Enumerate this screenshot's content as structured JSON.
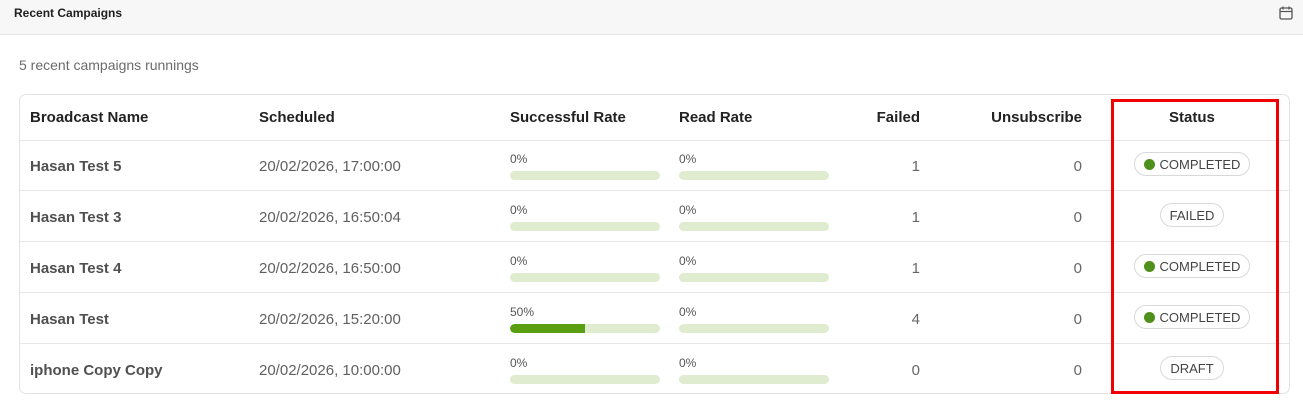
{
  "header": {
    "title": "Recent Campaigns",
    "calendar_icon": "calendar-icon"
  },
  "subtitle": "5 recent campaigns runnings",
  "columns": {
    "name": "Broadcast Name",
    "scheduled": "Scheduled",
    "success": "Successful Rate",
    "read": "Read Rate",
    "failed": "Failed",
    "unsubscribe": "Unsubscribe",
    "status": "Status"
  },
  "rows": [
    {
      "name": "Hasan Test 5",
      "scheduled": "20/02/2026, 17:00:00",
      "success_label": "0%",
      "success_value": 0,
      "read_label": "0%",
      "read_value": 0,
      "failed": "1",
      "unsubscribe": "0",
      "status": "COMPLETED",
      "status_dot": true
    },
    {
      "name": "Hasan Test 3",
      "scheduled": "20/02/2026, 16:50:04",
      "success_label": "0%",
      "success_value": 0,
      "read_label": "0%",
      "read_value": 0,
      "failed": "1",
      "unsubscribe": "0",
      "status": "FAILED",
      "status_dot": false
    },
    {
      "name": "Hasan Test 4",
      "scheduled": "20/02/2026, 16:50:00",
      "success_label": "0%",
      "success_value": 0,
      "read_label": "0%",
      "read_value": 0,
      "failed": "1",
      "unsubscribe": "0",
      "status": "COMPLETED",
      "status_dot": true
    },
    {
      "name": "Hasan Test",
      "scheduled": "20/02/2026, 15:20:00",
      "success_label": "50%",
      "success_value": 50,
      "read_label": "0%",
      "read_value": 0,
      "failed": "4",
      "unsubscribe": "0",
      "status": "COMPLETED",
      "status_dot": true
    },
    {
      "name": "iphone Copy Copy",
      "scheduled": "20/02/2026, 10:00:00",
      "success_label": "0%",
      "success_value": 0,
      "read_label": "0%",
      "read_value": 0,
      "failed": "0",
      "unsubscribe": "0",
      "status": "DRAFT",
      "status_dot": false
    }
  ],
  "colors": {
    "progress_track": "#dfeccf",
    "progress_fill": "#5a9e12",
    "status_dot": "#4f8f1c",
    "highlight": "#f00000"
  }
}
